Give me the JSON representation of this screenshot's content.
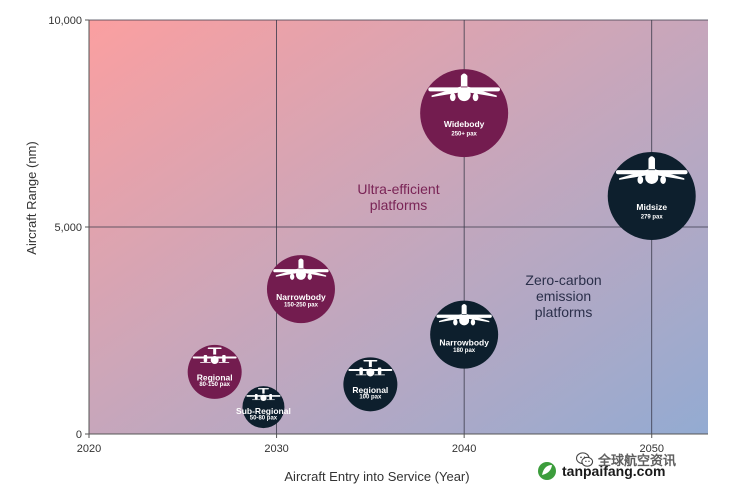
{
  "chart_data": {
    "type": "scatter",
    "xlabel": "Aircraft Entry into Service (Year)",
    "ylabel": "Aircraft Range (nm)",
    "xlim": [
      2020,
      2053
    ],
    "ylim": [
      0,
      10000
    ],
    "x_ticks": [
      "2020",
      "2030",
      "2040",
      "2050"
    ],
    "y_ticks": [
      "0",
      "5,000",
      "10,000"
    ],
    "grid": true,
    "background": "gradient from #fb9fa0 (top-left) to #93abd2 (bottom-right)",
    "regions": [
      {
        "label": [
          "Ultra-efficient",
          "platforms"
        ],
        "color": "#7a2456",
        "x": 2036.5,
        "y": 5800
      },
      {
        "label": [
          "Zero-carbon",
          "emission",
          "platforms"
        ],
        "color": "#2b2f4a",
        "x": 2045.3,
        "y": 3600
      }
    ],
    "series": [
      {
        "color": "#731c4f",
        "points": [
          {
            "label": "Widebody",
            "sub": "250+ pax",
            "x": 2040,
            "y": 7750,
            "size": "large",
            "plane": "jet"
          },
          {
            "label": "Narrowbody",
            "sub": "150-250 pax",
            "x": 2031.3,
            "y": 3500,
            "size": "medium",
            "plane": "jet"
          },
          {
            "label": "Regional",
            "sub": "80-150 pax",
            "x": 2026.7,
            "y": 1500,
            "size": "small",
            "plane": "prop"
          }
        ]
      },
      {
        "color": "#0d1f2d",
        "points": [
          {
            "label": "Midsize",
            "sub": "279 pax",
            "x": 2050,
            "y": 5750,
            "size": "large",
            "plane": "jet"
          },
          {
            "label": "Narrowbody",
            "sub": "180 pax",
            "x": 2040,
            "y": 2400,
            "size": "medium",
            "plane": "jet"
          },
          {
            "label": "Regional",
            "sub": "100 pax",
            "x": 2035,
            "y": 1200,
            "size": "small",
            "plane": "prop"
          },
          {
            "label": "Sub-Regional",
            "sub": "50-80 pax",
            "x": 2029.3,
            "y": 650,
            "size": "xsmall",
            "plane": "prop"
          }
        ]
      }
    ]
  },
  "watermark": {
    "chinese_text": "全球航空资讯",
    "site": "tanpaifang.com",
    "icon": "wechat-icon",
    "logo": "leaf-logo"
  }
}
